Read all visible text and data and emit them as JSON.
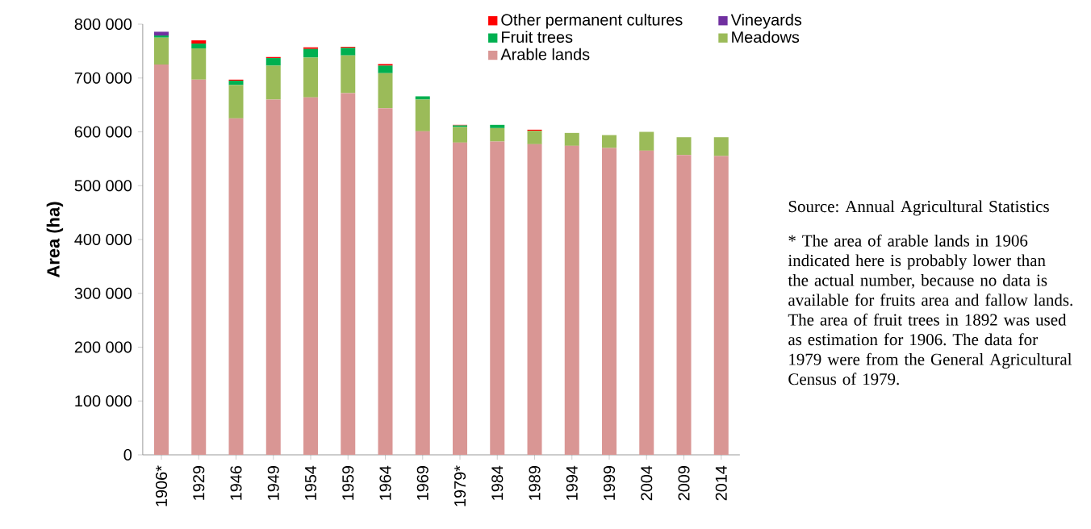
{
  "chart_data": {
    "type": "bar",
    "stacked": true,
    "ylabel": "Area (ha)",
    "categories": [
      "1906*",
      "1929",
      "1946",
      "1949",
      "1954",
      "1959",
      "1964",
      "1969",
      "1979*",
      "1984",
      "1989",
      "1994",
      "1999",
      "2004",
      "2009",
      "2014"
    ],
    "series": [
      {
        "name": "Arable lands",
        "color": "#d99694",
        "values": [
          725000,
          697000,
          625000,
          660000,
          664000,
          672000,
          644000,
          601000,
          580000,
          582000,
          577000,
          574000,
          570000,
          565000,
          557000,
          555000
        ]
      },
      {
        "name": "Meadows",
        "color": "#9bbb59",
        "values": [
          50000,
          58000,
          62000,
          63000,
          74000,
          70000,
          65000,
          59000,
          29000,
          25000,
          25000,
          24000,
          24000,
          35000,
          33000,
          35000
        ]
      },
      {
        "name": "Fruit trees",
        "color": "#00b050",
        "values": [
          4000,
          9000,
          8000,
          14000,
          16000,
          14000,
          14000,
          6000,
          3000,
          6000,
          0,
          0,
          0,
          0,
          0,
          0
        ]
      },
      {
        "name": "Vineyards",
        "color": "#7030a0",
        "values": [
          7000,
          0,
          0,
          0,
          0,
          0,
          0,
          0,
          0,
          0,
          0,
          0,
          0,
          0,
          0,
          0
        ]
      },
      {
        "name": "Other permanent cultures",
        "color": "#ff0000",
        "values": [
          0,
          6000,
          2000,
          2000,
          3000,
          2000,
          3000,
          0,
          1000,
          0,
          2000,
          0,
          0,
          0,
          0,
          0
        ]
      }
    ],
    "ylim": [
      0,
      800000
    ],
    "yticks": [
      {
        "value": 0,
        "label": "0"
      },
      {
        "value": 100000,
        "label": "100 000"
      },
      {
        "value": 200000,
        "label": "200 000"
      },
      {
        "value": 300000,
        "label": "300 000"
      },
      {
        "value": 400000,
        "label": "400 000"
      },
      {
        "value": 500000,
        "label": "500 000"
      },
      {
        "value": 600000,
        "label": "600 000"
      },
      {
        "value": 700000,
        "label": "700 000"
      },
      {
        "value": 800000,
        "label": "800 000"
      }
    ],
    "legend": "top right",
    "annotations": [
      "Source: Annual Agricultural Statistics",
      "* The area of arable lands in 1906 indicated here is probably lower than the actual number, because no data is available for fruits area and fallow lands. The area of fruit trees in 1892 was used as estimation for 1906. The data for 1979 were from the General Agricultural Census of 1979."
    ]
  }
}
